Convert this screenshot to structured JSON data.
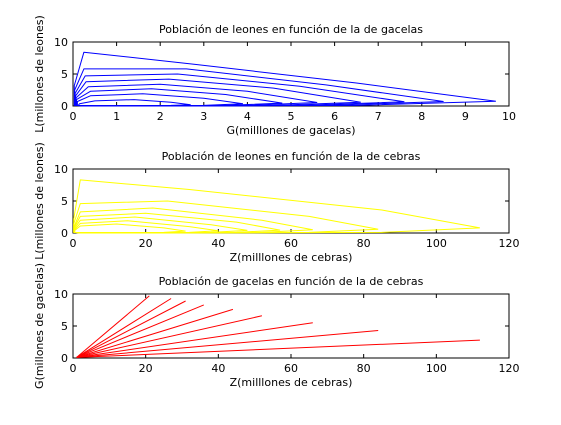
{
  "figure": {
    "background": "#ffffff"
  },
  "chart_data": [
    {
      "type": "line",
      "title": "Población de leones en función de la de gacelas",
      "xlabel": "G(milllones de gacelas)",
      "ylabel": "L(millones de leones)",
      "xlim": [
        0,
        10
      ],
      "ylim": [
        0,
        10
      ],
      "xticks": [
        "0",
        "1",
        "2",
        "3",
        "4",
        "5",
        "6",
        "7",
        "8",
        "9",
        "10"
      ],
      "yticks": [
        "0",
        "5",
        "10"
      ],
      "grid": false,
      "color": "#0000ff",
      "series": [
        {
          "x": [
            2.7,
            2.25,
            1.4,
            0.5,
            0.15,
            0.12,
            0.5,
            1.4,
            2.25,
            2.7
          ],
          "y": [
            0.2,
            0.6,
            1.0,
            0.8,
            0.35,
            0.1,
            0.05,
            0.05,
            0.1,
            0.2
          ]
        },
        {
          "x": [
            3.9,
            3.0,
            1.6,
            0.4,
            0.1,
            0.1,
            0.5,
            1.6,
            3.0,
            3.9
          ],
          "y": [
            0.35,
            1.2,
            1.9,
            1.6,
            0.7,
            0.1,
            0.03,
            0.03,
            0.1,
            0.35
          ]
        },
        {
          "x": [
            4.8,
            3.5,
            1.8,
            0.4,
            0.08,
            0.08,
            0.4,
            1.8,
            3.5,
            4.8
          ],
          "y": [
            0.45,
            1.8,
            2.7,
            2.3,
            1.0,
            0.1,
            0.02,
            0.02,
            0.1,
            0.45
          ]
        },
        {
          "x": [
            5.6,
            4.0,
            2.0,
            0.35,
            0.07,
            0.07,
            0.35,
            2.0,
            4.0,
            5.6
          ],
          "y": [
            0.55,
            2.3,
            3.4,
            3.0,
            1.3,
            0.1,
            0.02,
            0.02,
            0.1,
            0.55
          ]
        },
        {
          "x": [
            6.6,
            4.6,
            2.2,
            0.3,
            0.06,
            0.06,
            0.3,
            2.2,
            4.6,
            6.6
          ],
          "y": [
            0.6,
            2.8,
            4.2,
            3.8,
            1.6,
            0.1,
            0.02,
            0.02,
            0.1,
            0.6
          ]
        },
        {
          "x": [
            7.6,
            5.2,
            2.4,
            0.28,
            0.05,
            0.05,
            0.28,
            2.4,
            5.2,
            7.6
          ],
          "y": [
            0.65,
            3.1,
            5.0,
            4.7,
            2.0,
            0.1,
            0.01,
            0.01,
            0.1,
            0.65
          ]
        },
        {
          "x": [
            8.5,
            5.8,
            2.6,
            0.25,
            0.04,
            0.04,
            0.25,
            2.6,
            5.8,
            8.5
          ],
          "y": [
            0.7,
            3.3,
            5.8,
            5.8,
            2.5,
            0.1,
            0.01,
            0.01,
            0.1,
            0.7
          ]
        },
        {
          "x": [
            9.7,
            6.5,
            2.8,
            0.25,
            0.03,
            0.03,
            0.25,
            2.8,
            6.5,
            9.7
          ],
          "y": [
            0.75,
            3.6,
            6.5,
            8.4,
            3.2,
            0.1,
            0.01,
            0.01,
            0.1,
            0.75
          ]
        }
      ]
    },
    {
      "type": "line",
      "title": "Población de leones en función de la de cebras",
      "xlabel": "Z(milllones de cebras)",
      "ylabel": "L(millones de leones)",
      "xlim": [
        0,
        120
      ],
      "ylim": [
        0,
        10
      ],
      "xticks": [
        "0",
        "20",
        "40",
        "60",
        "80",
        "100",
        "120"
      ],
      "yticks": [
        "0",
        "5",
        "10"
      ],
      "grid": false,
      "color": "#ffff00",
      "series": [
        {
          "x": [
            31,
            25,
            12,
            2,
            0.5,
            0.5,
            2,
            12,
            25,
            31
          ],
          "y": [
            0.3,
            0.8,
            1.4,
            1.1,
            0.4,
            0.1,
            0.05,
            0.05,
            0.1,
            0.3
          ]
        },
        {
          "x": [
            40,
            32,
            15,
            2,
            0.4,
            0.4,
            2,
            15,
            32,
            40
          ],
          "y": [
            0.35,
            1.0,
            1.9,
            1.5,
            0.5,
            0.1,
            0.05,
            0.05,
            0.1,
            0.35
          ]
        },
        {
          "x": [
            48,
            38,
            17,
            2,
            0.3,
            0.3,
            2,
            17,
            38,
            48
          ],
          "y": [
            0.4,
            1.3,
            2.5,
            2.0,
            0.6,
            0.1,
            0.04,
            0.04,
            0.1,
            0.4
          ]
        },
        {
          "x": [
            57,
            45,
            20,
            2,
            0.3,
            0.3,
            2,
            20,
            45,
            57
          ],
          "y": [
            0.45,
            1.7,
            3.1,
            2.6,
            0.8,
            0.1,
            0.03,
            0.03,
            0.1,
            0.45
          ]
        },
        {
          "x": [
            66,
            52,
            22,
            2,
            0.3,
            0.3,
            2,
            22,
            52,
            66
          ],
          "y": [
            0.5,
            2.0,
            3.9,
            3.3,
            1.0,
            0.1,
            0.03,
            0.03,
            0.1,
            0.5
          ]
        },
        {
          "x": [
            84,
            65,
            26,
            2,
            0.2,
            0.2,
            2,
            26,
            65,
            84
          ],
          "y": [
            0.6,
            2.6,
            5.0,
            4.6,
            1.4,
            0.1,
            0.02,
            0.02,
            0.1,
            0.6
          ]
        },
        {
          "x": [
            112,
            85,
            32,
            2,
            0.2,
            0.2,
            2,
            32,
            85,
            112
          ],
          "y": [
            0.8,
            3.6,
            6.8,
            8.3,
            2.2,
            0.1,
            0.02,
            0.02,
            0.1,
            0.8
          ]
        }
      ]
    },
    {
      "type": "line",
      "title": "Población de gacelas en función de la de cebras",
      "xlabel": "Z(milllones de cebras)",
      "ylabel": "G(millones de gacelas)",
      "xlim": [
        0,
        120
      ],
      "ylim": [
        0,
        10
      ],
      "xticks": [
        "0",
        "20",
        "40",
        "60",
        "80",
        "100",
        "120"
      ],
      "yticks": [
        "0",
        "5",
        "10"
      ],
      "grid": false,
      "color": "#ff0000",
      "series": [
        {
          "x": [
            1,
            21
          ],
          "y": [
            0.1,
            9.7
          ]
        },
        {
          "x": [
            1,
            27
          ],
          "y": [
            0.1,
            9.3
          ]
        },
        {
          "x": [
            1,
            31
          ],
          "y": [
            0.1,
            8.9
          ]
        },
        {
          "x": [
            1,
            36
          ],
          "y": [
            0.1,
            8.3
          ]
        },
        {
          "x": [
            1,
            44
          ],
          "y": [
            0.1,
            7.6
          ]
        },
        {
          "x": [
            1,
            52
          ],
          "y": [
            0.1,
            6.6
          ]
        },
        {
          "x": [
            1,
            66
          ],
          "y": [
            0.1,
            5.5
          ]
        },
        {
          "x": [
            1,
            84
          ],
          "y": [
            0.1,
            4.3
          ]
        },
        {
          "x": [
            1,
            112
          ],
          "y": [
            0.1,
            2.8
          ]
        }
      ]
    }
  ]
}
